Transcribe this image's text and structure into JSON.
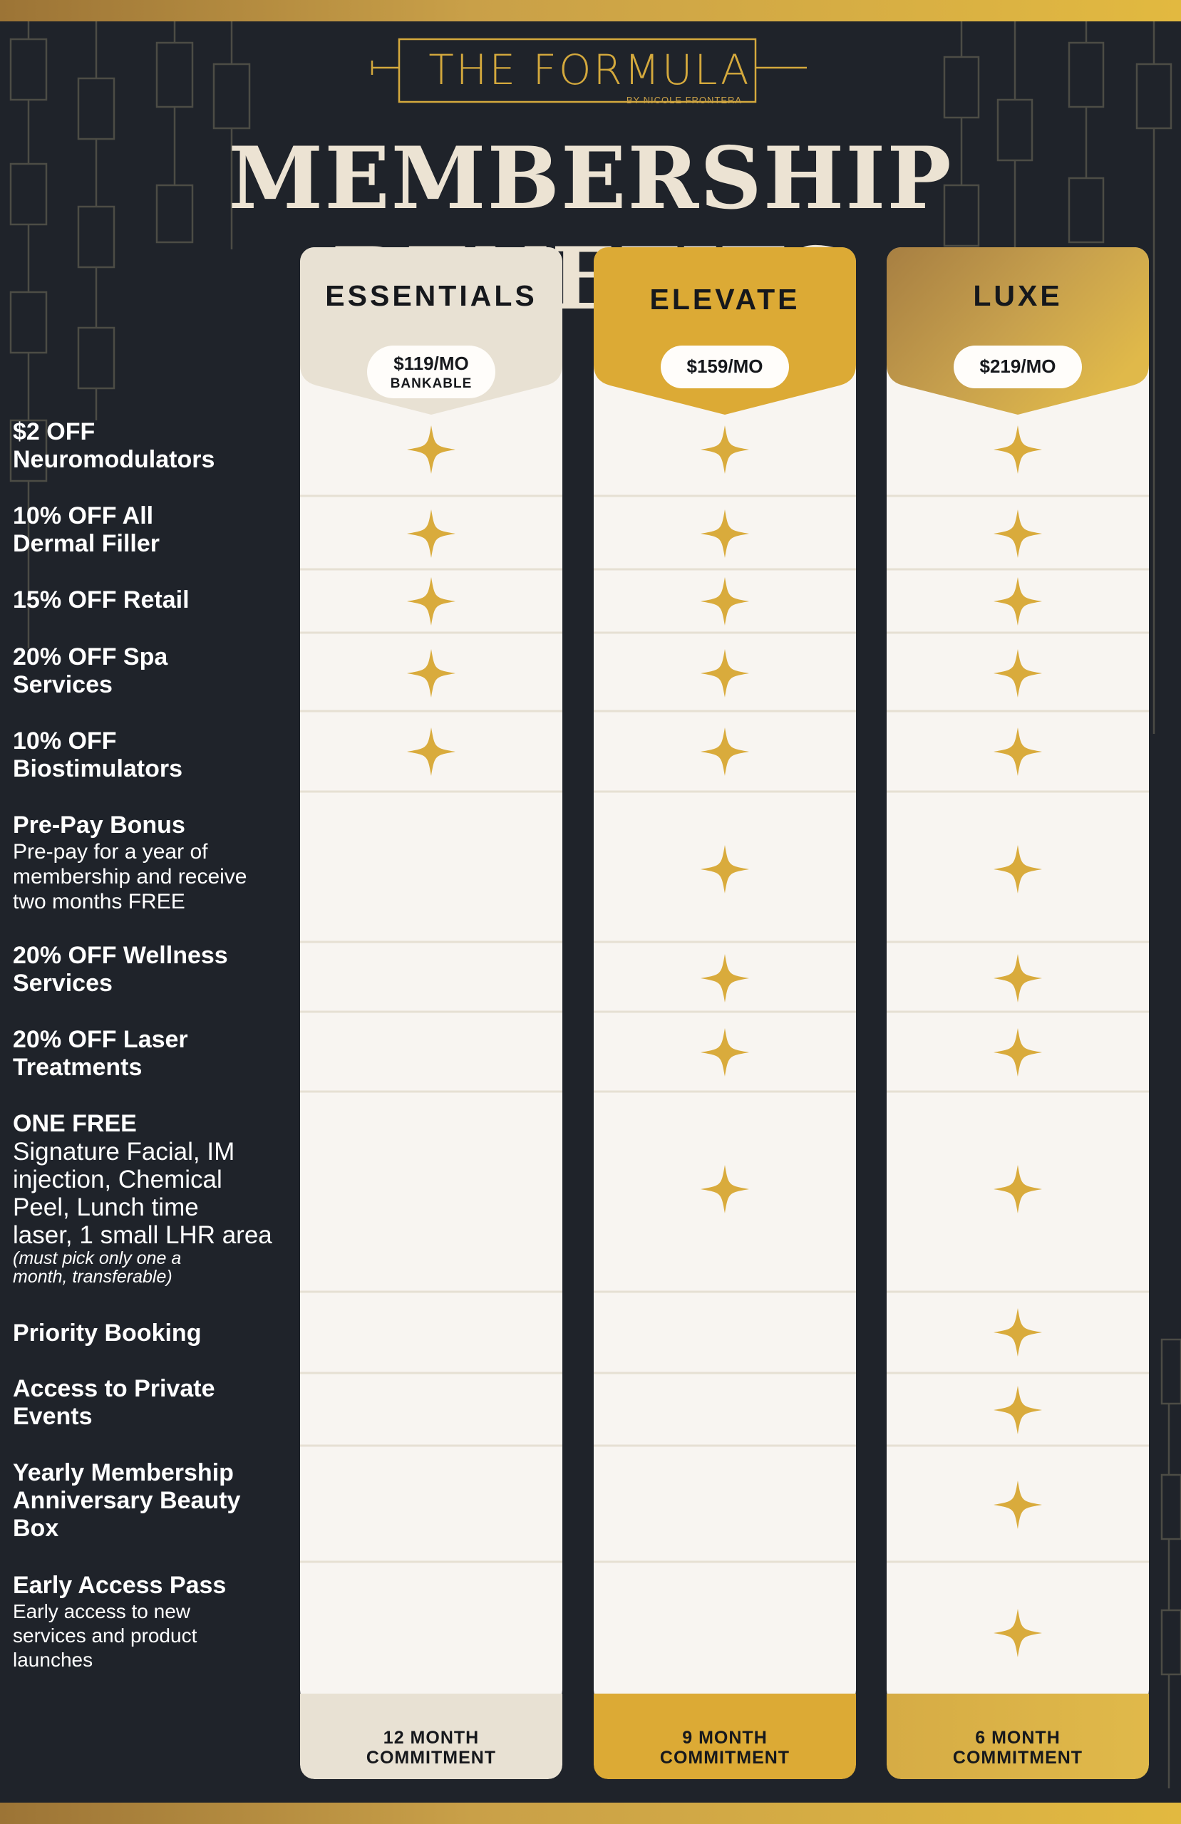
{
  "brand": {
    "logo_text": "THE FORMULA",
    "logo_sub": "BY NICOLE FRONTERA",
    "gold_accent": "#d4a93d"
  },
  "title": "MEMBERSHIP BENEFITS",
  "tiers": [
    {
      "name": "ESSENTIALS",
      "price": "$119/MO",
      "price_note": "BANKABLE",
      "commitment_line1": "12 MONTH",
      "commitment_line2": "COMMITMENT",
      "color": "#e8e1d3"
    },
    {
      "name": "ELEVATE",
      "price": "$159/MO",
      "price_note": "",
      "commitment_line1": "9 MONTH",
      "commitment_line2": "COMMITMENT",
      "color": "#dcaa35"
    },
    {
      "name": "LUXE",
      "price": "$219/MO",
      "price_note": "",
      "commitment_line1": "6 MONTH",
      "commitment_line2": "COMMITMENT",
      "color": "#c9a048"
    }
  ],
  "benefits": [
    {
      "title_l1": "$2 OFF",
      "title_l2": "Neuromodulators",
      "included": [
        true,
        true,
        true
      ]
    },
    {
      "title_l1": "10% OFF All",
      "title_l2": "Dermal Filler",
      "included": [
        true,
        true,
        true
      ]
    },
    {
      "title_l1": "15% OFF Retail",
      "included": [
        true,
        true,
        true
      ]
    },
    {
      "title_l1": "20% OFF Spa",
      "title_l2": "Services",
      "included": [
        true,
        true,
        true
      ]
    },
    {
      "title_l1": "10% OFF",
      "title_l2": "Biostimulators",
      "included": [
        true,
        true,
        true
      ]
    },
    {
      "title_l1": "Pre-Pay Bonus",
      "desc_l1": "Pre-pay for a year of",
      "desc_l2": "membership and receive",
      "desc_l3": "two months FREE",
      "included": [
        false,
        true,
        true
      ]
    },
    {
      "title_l1": "20% OFF Wellness",
      "title_l2": "Services",
      "included": [
        false,
        true,
        true
      ]
    },
    {
      "title_l1": "20% OFF Laser",
      "title_l2": "Treatments",
      "included": [
        false,
        true,
        true
      ]
    },
    {
      "title_l1": "ONE FREE",
      "desc_l1": "Signature Facial, IM",
      "desc_l2": "injection, Chemical",
      "desc_l3": "Peel, Lunch time",
      "desc_l4": "laser, 1 small LHR area",
      "note_l1": "(must pick only one a",
      "note_l2": "month, transferable)",
      "included": [
        false,
        true,
        true
      ]
    },
    {
      "title_l1": "Priority Booking",
      "included": [
        false,
        false,
        true
      ]
    },
    {
      "title_l1": "Access to Private",
      "title_l2": "Events",
      "included": [
        false,
        false,
        true
      ]
    },
    {
      "title_l1": "Yearly Membership",
      "title_l2": "Anniversary Beauty",
      "title_l3": "Box",
      "included": [
        false,
        false,
        true
      ]
    },
    {
      "title_l1": "Early Access Pass",
      "desc_l1": "Early access to new",
      "desc_l2": "services and product",
      "desc_l3": "launches",
      "included": [
        false,
        false,
        true
      ]
    }
  ],
  "icons": {
    "included": "four-point-star-icon",
    "star_color": "#d9ab3c"
  }
}
